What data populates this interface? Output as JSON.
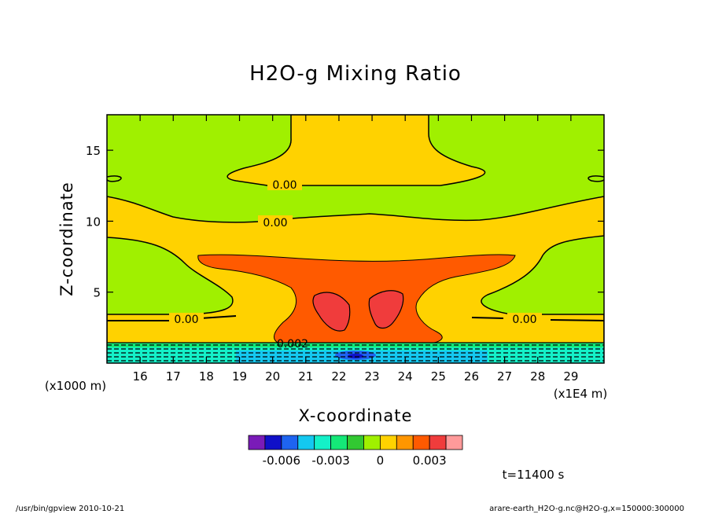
{
  "footer": {
    "left": "/usr/bin/gpview  2010-10-21",
    "right": "arare-earth_H2O-g.nc@H2O-g,x=150000:300000"
  },
  "time_label": "t=11400 s",
  "chart_data": {
    "type": "contour",
    "title": "H2O-g Mixing Ratio",
    "xlabel": "X-coordinate",
    "ylabel": "Z-coordinate",
    "x_unit_label": "(x1E4 m)",
    "y_unit_label": "(x1000 m)",
    "xlim": [
      15,
      30
    ],
    "ylim": [
      0,
      17.5
    ],
    "x_ticks": [
      "16",
      "17",
      "18",
      "19",
      "20",
      "21",
      "22",
      "23",
      "24",
      "25",
      "26",
      "27",
      "28",
      "29"
    ],
    "y_ticks": [
      "5",
      "10",
      "15"
    ],
    "contour_labels": [
      "0.00",
      "0.00",
      "0.00",
      "0.00",
      "0.002"
    ],
    "colorbar": {
      "colors": [
        "#7a1bb8",
        "#1010c8",
        "#1e64f0",
        "#14c8f0",
        "#14f0c8",
        "#14e878",
        "#32c832",
        "#a0f000",
        "#ffd200",
        "#ff9600",
        "#ff5a00",
        "#f03c3c",
        "#ff9a9a"
      ],
      "tick_labels": [
        "-0.006",
        "-0.003",
        "0",
        "0.003"
      ],
      "tick_values": [
        -0.006,
        -0.003,
        0,
        0.003
      ]
    },
    "regions": [
      {
        "level": "0",
        "color": "#a0f000",
        "area": "background"
      },
      {
        "level": "0.001",
        "color": "#ffd200",
        "area": "upper plume and mid layer"
      },
      {
        "level": "0.002",
        "color": "#ff5a00",
        "area": "central mushroom z 2-7.5"
      },
      {
        "level": "0.003",
        "color": "#f03c3c",
        "area": "two cells near x 21.8 and 23.3, z 3-5"
      },
      {
        "level": "-0.001 to -0.006",
        "color": "#14c8f0",
        "area": "surface layer z < 1.5"
      }
    ]
  }
}
